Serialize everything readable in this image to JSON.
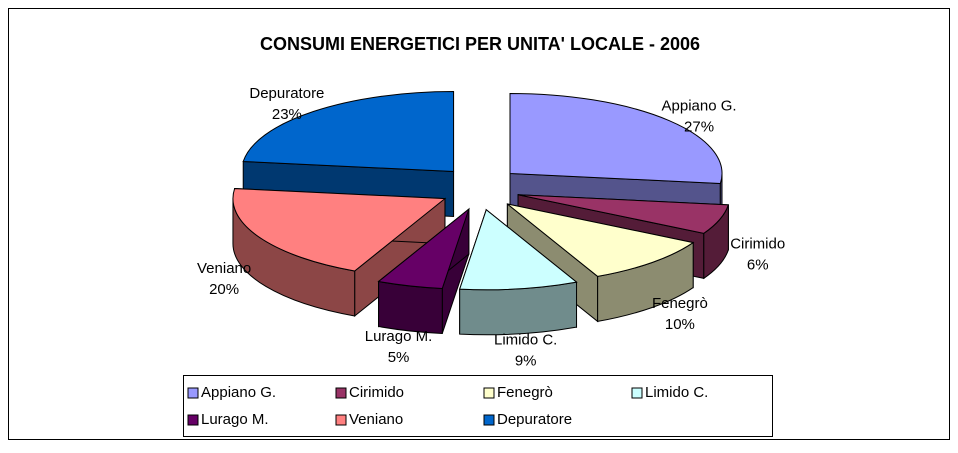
{
  "chart_data": {
    "type": "pie3d",
    "title": "CONSUMI ENERGETICI PER UNITA' LOCALE - 2006",
    "categories": [
      "Appiano G.",
      "Cirimido",
      "Fenegrò",
      "Limido C.",
      "Lurago M.",
      "Veniano",
      "Depuratore"
    ],
    "values": [
      27,
      6,
      10,
      9,
      5,
      20,
      23
    ],
    "value_labels": [
      "27%",
      "6%",
      "10%",
      "9%",
      "5%",
      "20%",
      "23%"
    ],
    "colors": [
      "#9999ff",
      "#993366",
      "#ffffcc",
      "#ccffff",
      "#660066",
      "#ff8080",
      "#0066cc"
    ],
    "legend": "bottom"
  }
}
